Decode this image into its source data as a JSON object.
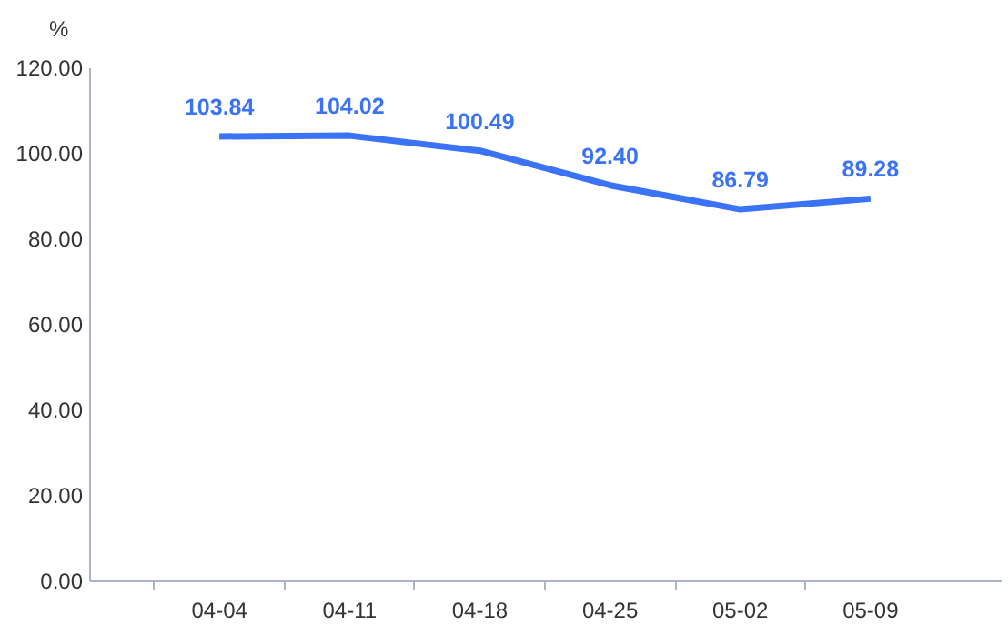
{
  "chart_data": {
    "type": "line",
    "ylabel": "%",
    "categories": [
      "04-04",
      "04-11",
      "04-18",
      "04-25",
      "05-02",
      "05-09"
    ],
    "series": [
      {
        "color": "#3b73f6",
        "values": [
          103.84,
          104.02,
          100.49,
          92.4,
          86.79,
          89.28
        ]
      }
    ],
    "value_labels": [
      "103.84",
      "104.02",
      "100.49",
      "92.40",
      "86.79",
      "89.28"
    ],
    "ylim": [
      0,
      120
    ],
    "yticks": [
      {
        "value": 0,
        "label": "0.00"
      },
      {
        "value": 20,
        "label": "20.00"
      },
      {
        "value": 40,
        "label": "40.00"
      },
      {
        "value": 60,
        "label": "60.00"
      },
      {
        "value": 80,
        "label": "80.00"
      },
      {
        "value": 100,
        "label": "100.00"
      },
      {
        "value": 120,
        "label": "120.00"
      }
    ],
    "grid": false,
    "marker": "none",
    "line_style": "solid"
  }
}
